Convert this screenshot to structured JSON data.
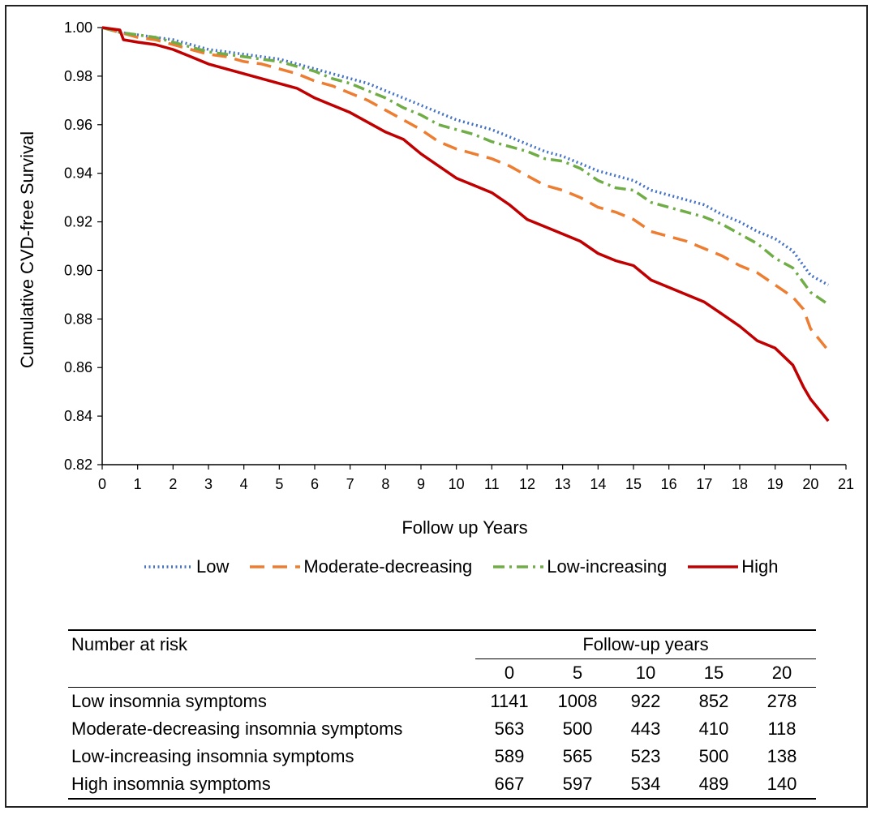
{
  "chart_data": {
    "type": "line",
    "title": "",
    "xlabel": "Follow up Years",
    "ylabel": "Cumulative CVD-free Survival",
    "xlim": [
      0,
      21
    ],
    "ylim": [
      0.82,
      1.0
    ],
    "x_ticks": [
      "0",
      "1",
      "2",
      "3",
      "4",
      "5",
      "6",
      "7",
      "8",
      "9",
      "10",
      "11",
      "12",
      "13",
      "14",
      "15",
      "16",
      "17",
      "18",
      "19",
      "20",
      "21"
    ],
    "y_ticks": [
      "0.82",
      "0.84",
      "0.86",
      "0.88",
      "0.90",
      "0.92",
      "0.94",
      "0.96",
      "0.98",
      "1.00"
    ],
    "grid": false,
    "legend_position": "bottom",
    "series": [
      {
        "name": "Low",
        "color": "#4472C4",
        "style": "dotted",
        "x": [
          0,
          0.5,
          1,
          1.5,
          2,
          2.5,
          3,
          3.5,
          4,
          4.5,
          5,
          5.5,
          6,
          6.5,
          7,
          7.5,
          8,
          8.5,
          9,
          9.5,
          10,
          10.5,
          11,
          11.5,
          12,
          12.5,
          13,
          13.5,
          14,
          14.5,
          15,
          15.5,
          16,
          16.5,
          17,
          17.5,
          18,
          18.5,
          19,
          19.5,
          20,
          20.5
        ],
        "y": [
          1.0,
          0.998,
          0.997,
          0.996,
          0.995,
          0.993,
          0.991,
          0.99,
          0.989,
          0.988,
          0.987,
          0.985,
          0.983,
          0.981,
          0.979,
          0.977,
          0.974,
          0.971,
          0.968,
          0.965,
          0.962,
          0.96,
          0.958,
          0.955,
          0.952,
          0.949,
          0.947,
          0.944,
          0.941,
          0.939,
          0.937,
          0.933,
          0.931,
          0.929,
          0.927,
          0.923,
          0.92,
          0.916,
          0.913,
          0.908,
          0.898,
          0.894
        ]
      },
      {
        "name": "Moderate-decreasing",
        "color": "#ED7D31",
        "style": "dashed",
        "x": [
          0,
          0.5,
          1,
          1.5,
          2,
          2.5,
          3,
          3.5,
          4,
          4.5,
          5,
          5.5,
          6,
          6.5,
          7,
          7.5,
          8,
          8.5,
          9,
          9.5,
          10,
          10.5,
          11,
          11.5,
          12,
          12.5,
          13,
          13.5,
          14,
          14.5,
          15,
          15.5,
          16,
          16.5,
          17,
          17.5,
          18,
          18.5,
          19,
          19.5,
          19.8,
          20,
          20.5
        ],
        "y": [
          1.0,
          0.998,
          0.996,
          0.995,
          0.993,
          0.991,
          0.989,
          0.988,
          0.986,
          0.985,
          0.983,
          0.981,
          0.978,
          0.976,
          0.973,
          0.97,
          0.966,
          0.962,
          0.958,
          0.953,
          0.95,
          0.948,
          0.946,
          0.943,
          0.939,
          0.935,
          0.933,
          0.93,
          0.926,
          0.924,
          0.921,
          0.916,
          0.914,
          0.912,
          0.909,
          0.906,
          0.902,
          0.899,
          0.894,
          0.889,
          0.884,
          0.876,
          0.867
        ]
      },
      {
        "name": "Low-increasing",
        "color": "#70AD47",
        "style": "dash-dot",
        "x": [
          0,
          0.5,
          1,
          1.5,
          2,
          2.5,
          3,
          3.5,
          4,
          4.5,
          5,
          5.5,
          6,
          6.5,
          7,
          7.5,
          8,
          8.5,
          9,
          9.5,
          10,
          10.5,
          11,
          11.5,
          12,
          12.5,
          13,
          13.5,
          14,
          14.5,
          15,
          15.5,
          16,
          16.5,
          17,
          17.5,
          18,
          18.5,
          19,
          19.5,
          20,
          20.5
        ],
        "y": [
          1.0,
          0.998,
          0.997,
          0.996,
          0.994,
          0.992,
          0.99,
          0.989,
          0.988,
          0.987,
          0.986,
          0.984,
          0.982,
          0.979,
          0.977,
          0.974,
          0.971,
          0.967,
          0.964,
          0.96,
          0.958,
          0.956,
          0.953,
          0.951,
          0.949,
          0.946,
          0.945,
          0.942,
          0.937,
          0.934,
          0.933,
          0.928,
          0.926,
          0.924,
          0.922,
          0.919,
          0.915,
          0.911,
          0.905,
          0.901,
          0.891,
          0.886
        ]
      },
      {
        "name": "High",
        "color": "#C00000",
        "style": "solid",
        "x": [
          0,
          0.5,
          0.6,
          1,
          1.5,
          2,
          2.5,
          3,
          3.5,
          4,
          4.5,
          5,
          5.5,
          6,
          6.5,
          7,
          7.5,
          8,
          8.5,
          9,
          9.5,
          10,
          10.5,
          11,
          11.5,
          12,
          12.5,
          13,
          13.5,
          14,
          14.5,
          15,
          15.5,
          16,
          16.5,
          17,
          17.5,
          18,
          18.5,
          19,
          19.5,
          19.8,
          20,
          20.5
        ],
        "y": [
          1.0,
          0.999,
          0.995,
          0.994,
          0.993,
          0.991,
          0.988,
          0.985,
          0.983,
          0.981,
          0.979,
          0.977,
          0.975,
          0.971,
          0.968,
          0.965,
          0.961,
          0.957,
          0.954,
          0.948,
          0.943,
          0.938,
          0.935,
          0.932,
          0.927,
          0.921,
          0.918,
          0.915,
          0.912,
          0.907,
          0.904,
          0.902,
          0.896,
          0.893,
          0.89,
          0.887,
          0.882,
          0.877,
          0.871,
          0.868,
          0.861,
          0.852,
          0.847,
          0.838
        ]
      }
    ]
  },
  "risk_table": {
    "title": "Number at risk",
    "years_label": "Follow-up years",
    "years": [
      "0",
      "5",
      "10",
      "15",
      "20"
    ],
    "rows": [
      {
        "label": "Low insomnia symptoms",
        "values": [
          "1141",
          "1008",
          "922",
          "852",
          "278"
        ]
      },
      {
        "label": "Moderate-decreasing insomnia symptoms",
        "values": [
          "563",
          "500",
          "443",
          "410",
          "118"
        ]
      },
      {
        "label": "Low-increasing insomnia symptoms",
        "values": [
          "589",
          "565",
          "523",
          "500",
          "138"
        ]
      },
      {
        "label": "High insomnia symptoms",
        "values": [
          "667",
          "597",
          "534",
          "489",
          "140"
        ]
      }
    ]
  }
}
